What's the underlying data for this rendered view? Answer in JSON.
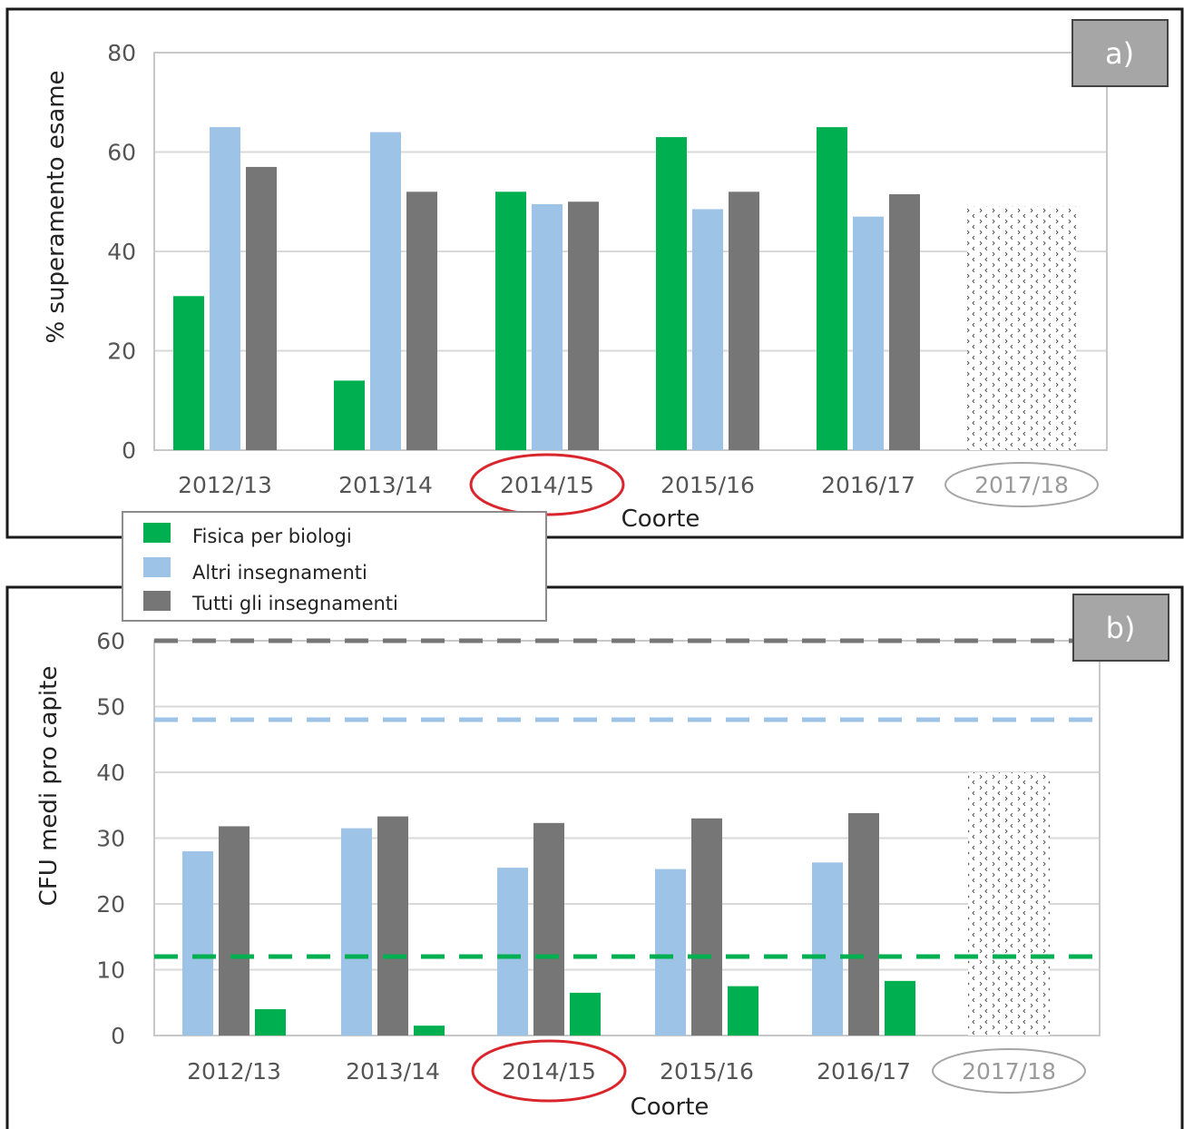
{
  "legend": {
    "items": [
      {
        "label": "Fisica per biologi",
        "color": "#00b050"
      },
      {
        "label": "Altri insegnamenti",
        "color": "#9dc3e6"
      },
      {
        "label": "Tutti gli  insegnamenti",
        "color": "#767676"
      }
    ]
  },
  "colors": {
    "highlight_circle": "#d9262c",
    "future_circle": "#a6a6a6",
    "grid": "#d9d9d9",
    "pattern": "#555555"
  },
  "chart_data": [
    {
      "type": "bar",
      "panel_label": "a)",
      "ylabel": "% superamento esame",
      "xlabel": "Coorte",
      "categories": [
        "2012/13",
        "2013/14",
        "2014/15",
        "2015/16",
        "2016/17",
        "2017/18"
      ],
      "ylim": [
        0,
        80
      ],
      "yticks": [
        0,
        20,
        40,
        60,
        80
      ],
      "grid": true,
      "series": [
        {
          "name": "Fisica per biologi",
          "values": [
            31,
            14,
            52,
            63,
            65,
            null
          ]
        },
        {
          "name": "Altri insegnamenti",
          "values": [
            65,
            64,
            49.5,
            48.5,
            47,
            null
          ]
        },
        {
          "name": "Tutti gli  insegnamenti",
          "values": [
            57,
            52,
            50,
            52,
            51.5,
            null
          ]
        }
      ],
      "projection": {
        "category": "2017/18",
        "value": 49,
        "style": "dotted-pattern"
      },
      "highlighted_category": "2014/15",
      "future_category": "2017/18"
    },
    {
      "type": "bar",
      "panel_label": "b)",
      "ylabel": "CFU medi pro capite",
      "xlabel": "Coorte",
      "categories": [
        "2012/13",
        "2013/14",
        "2014/15",
        "2015/16",
        "2016/17",
        "2017/18"
      ],
      "ylim": [
        0,
        60
      ],
      "yticks": [
        0,
        10,
        20,
        30,
        40,
        50,
        60
      ],
      "grid": true,
      "series": [
        {
          "name": "Altri insegnamenti",
          "values": [
            28,
            31.5,
            25.5,
            25.3,
            26.3,
            null
          ]
        },
        {
          "name": "Tutti gli  insegnamenti",
          "values": [
            31.8,
            33.3,
            32.3,
            33,
            33.8,
            null
          ]
        },
        {
          "name": "Fisica per biologi",
          "values": [
            4,
            1.5,
            6.5,
            7.5,
            8.3,
            null
          ]
        }
      ],
      "reference_lines": [
        {
          "series": "Tutti gli  insegnamenti",
          "value": 60
        },
        {
          "series": "Altri insegnamenti",
          "value": 48
        },
        {
          "series": "Fisica per biologi",
          "value": 12
        }
      ],
      "projection": {
        "category": "2017/18",
        "value": 40,
        "style": "dotted-pattern"
      },
      "highlighted_category": "2014/15",
      "future_category": "2017/18"
    }
  ]
}
